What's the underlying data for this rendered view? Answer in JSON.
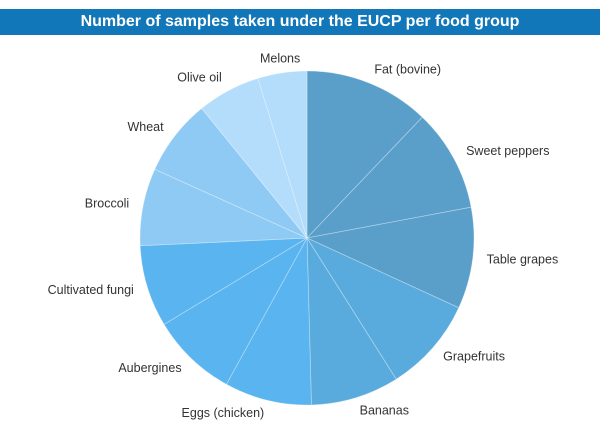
{
  "chart_data": {
    "type": "pie",
    "title": "Number of samples taken under the EUCP per food group",
    "categories": [
      "Fat (bovine)",
      "Sweet peppers",
      "Table grapes",
      "Grapefruits",
      "Bananas",
      "Eggs (chicken)",
      "Aubergines",
      "Cultivated fungi",
      "Broccoli",
      "Wheat",
      "Olive oil",
      "Melons"
    ],
    "values": [
      11.5,
      9.4,
      9.3,
      8.7,
      8.1,
      8.0,
      7.9,
      7.5,
      7.1,
      7.0,
      5.8,
      4.5
    ],
    "colors": [
      "#5a9fca",
      "#5a9fca",
      "#5a9fca",
      "#5aabdd",
      "#5aabdd",
      "#59b4ef",
      "#59b4ef",
      "#59b4ef",
      "#8fcaf4",
      "#8fcaf4",
      "#b3ddfb",
      "#b3ddfb"
    ],
    "legend": "none"
  }
}
